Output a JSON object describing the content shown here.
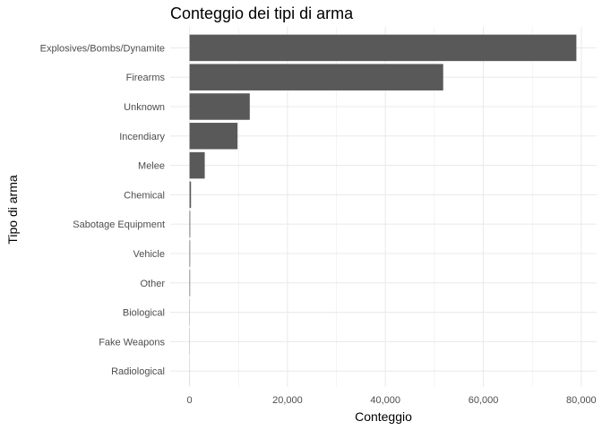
{
  "chart_data": {
    "type": "bar",
    "orientation": "horizontal",
    "title": "Conteggio dei tipi di arma",
    "xlabel": "Conteggio",
    "ylabel": "Tipo di arma",
    "categories": [
      "Explosives/Bombs/Dynamite",
      "Firearms",
      "Unknown",
      "Incendiary",
      "Melee",
      "Chemical",
      "Sabotage Equipment",
      "Vehicle",
      "Other",
      "Biological",
      "Fake Weapons",
      "Radiological"
    ],
    "values": [
      79000,
      51800,
      12300,
      9800,
      3100,
      300,
      140,
      120,
      110,
      35,
      30,
      15
    ],
    "xlim": [
      0,
      80000
    ],
    "x_ticks": [
      0,
      20000,
      40000,
      60000,
      80000
    ],
    "x_tick_labels": [
      "0",
      "20,000",
      "40,000",
      "60,000",
      "80,000"
    ],
    "bar_color": "#595959",
    "grid": true,
    "grid_color": "#ebebeb",
    "background": "#ffffff"
  }
}
